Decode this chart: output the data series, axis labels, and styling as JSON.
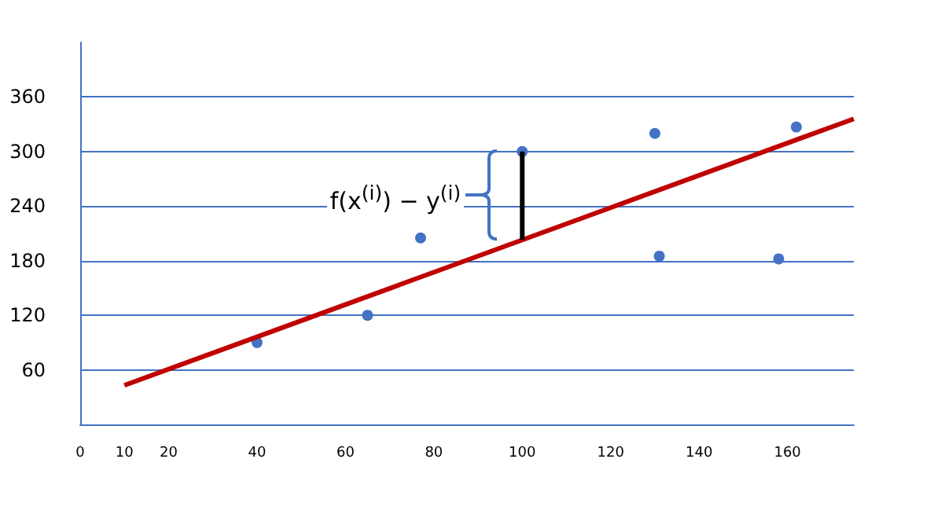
{
  "chart_data": {
    "type": "scatter",
    "xlim": [
      0,
      175
    ],
    "xticks": [
      0,
      10,
      20,
      40,
      60,
      80,
      100,
      120,
      140,
      160
    ],
    "ylim": [
      0,
      420
    ],
    "yticks": [
      60,
      120,
      180,
      240,
      300,
      360
    ],
    "grid": "y",
    "marker": "circle",
    "annotations": [
      {
        "text": "f(x$^{(i)}$) − y$^{(i)}$",
        "x": 100,
        "y": 250
      }
    ],
    "series": [
      {
        "color": "#4472c4",
        "x": [
          40,
          65,
          77,
          100,
          130,
          131,
          158,
          162
        ],
        "values": [
          90,
          120,
          205,
          300,
          320,
          185,
          182,
          327
        ]
      },
      {
        "type": "line",
        "color": "#c00000",
        "marker": "none",
        "x": [
          10,
          175
        ],
        "values": [
          43,
          336
        ]
      },
      {
        "type": "line",
        "color": "#000000",
        "marker": "none",
        "x": [
          100,
          100
        ],
        "values": [
          203,
          300
        ]
      }
    ]
  }
}
